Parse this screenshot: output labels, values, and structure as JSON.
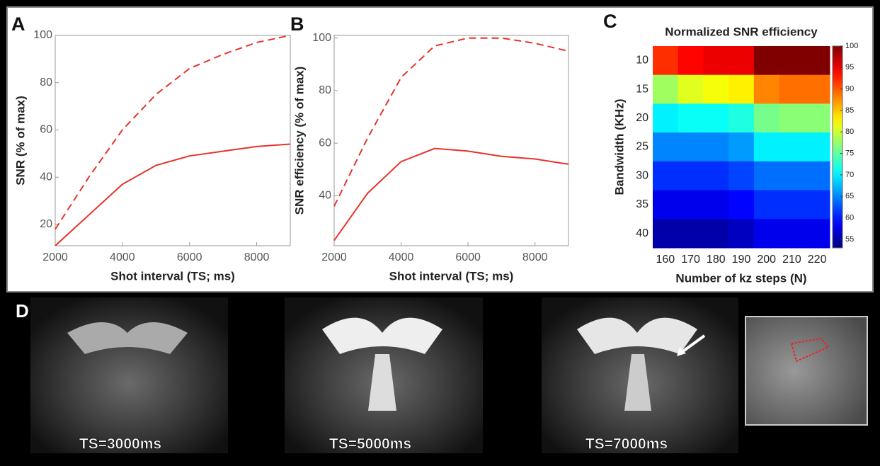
{
  "chart_data": [
    {
      "type": "line",
      "label": "A",
      "xlabel": "Shot interval (TS; ms)",
      "ylabel": "SNR (% of max)",
      "x": [
        2000,
        3000,
        4000,
        5000,
        6000,
        7000,
        8000,
        9000
      ],
      "series": [
        {
          "color": "#e8322a",
          "style": "dashed",
          "values": [
            18,
            40,
            60,
            75,
            86,
            92,
            97,
            100
          ]
        },
        {
          "color": "#e8322a",
          "style": "solid",
          "values": [
            11,
            24,
            37,
            45,
            49,
            51,
            53,
            54
          ]
        }
      ],
      "xlim": [
        2000,
        9000
      ],
      "xticks": [
        2000,
        4000,
        6000,
        8000
      ],
      "ylim": [
        11,
        100
      ],
      "yticks": [
        20,
        40,
        60,
        80,
        100
      ]
    },
    {
      "type": "line",
      "label": "B",
      "xlabel": "Shot interval (TS; ms)",
      "ylabel": "SNR efficiency (% of max)",
      "x": [
        2000,
        3000,
        4000,
        5000,
        6000,
        7000,
        8000,
        9000
      ],
      "series": [
        {
          "color": "#e8322a",
          "style": "dashed",
          "values": [
            36,
            62,
            85,
            97,
            100,
            100,
            98,
            95
          ]
        },
        {
          "color": "#e8322a",
          "style": "solid",
          "values": [
            23,
            41,
            53,
            58,
            57,
            55,
            54,
            52
          ]
        }
      ],
      "xlim": [
        2000,
        9000
      ],
      "xticks": [
        2000,
        4000,
        6000,
        8000
      ],
      "ylim": [
        21,
        101
      ],
      "yticks": [
        40,
        60,
        80,
        100
      ]
    },
    {
      "type": "heatmap",
      "label": "C",
      "title": "Normalized SNR efficiency",
      "xlabel": "Number of kz steps (N)",
      "ylabel": "Bandwidth (KHz)",
      "categories": [
        160,
        170,
        180,
        190,
        200,
        210,
        220
      ],
      "rows": [
        10,
        15,
        20,
        25,
        30,
        35,
        40
      ],
      "values": [
        [
          92,
          94,
          95,
          95,
          100,
          100,
          100
        ],
        [
          78,
          81,
          82,
          83,
          88,
          89,
          89
        ],
        [
          70,
          71,
          71,
          72,
          76,
          77,
          77
        ],
        [
          65,
          65,
          65,
          66,
          70,
          70,
          70
        ],
        [
          61,
          61,
          61,
          62,
          64,
          64,
          64
        ],
        [
          58,
          58,
          58,
          59,
          61,
          61,
          61
        ],
        [
          55,
          55,
          55,
          56,
          58,
          58,
          58
        ]
      ],
      "colormap": "jet",
      "clim": [
        53,
        100
      ],
      "cticks": [
        55,
        60,
        65,
        70,
        75,
        80,
        85,
        90,
        95,
        100
      ]
    }
  ],
  "panel_d": {
    "label": "D",
    "captions": [
      "TS=3000ms",
      "TS=5000ms",
      "TS=7000ms"
    ]
  }
}
